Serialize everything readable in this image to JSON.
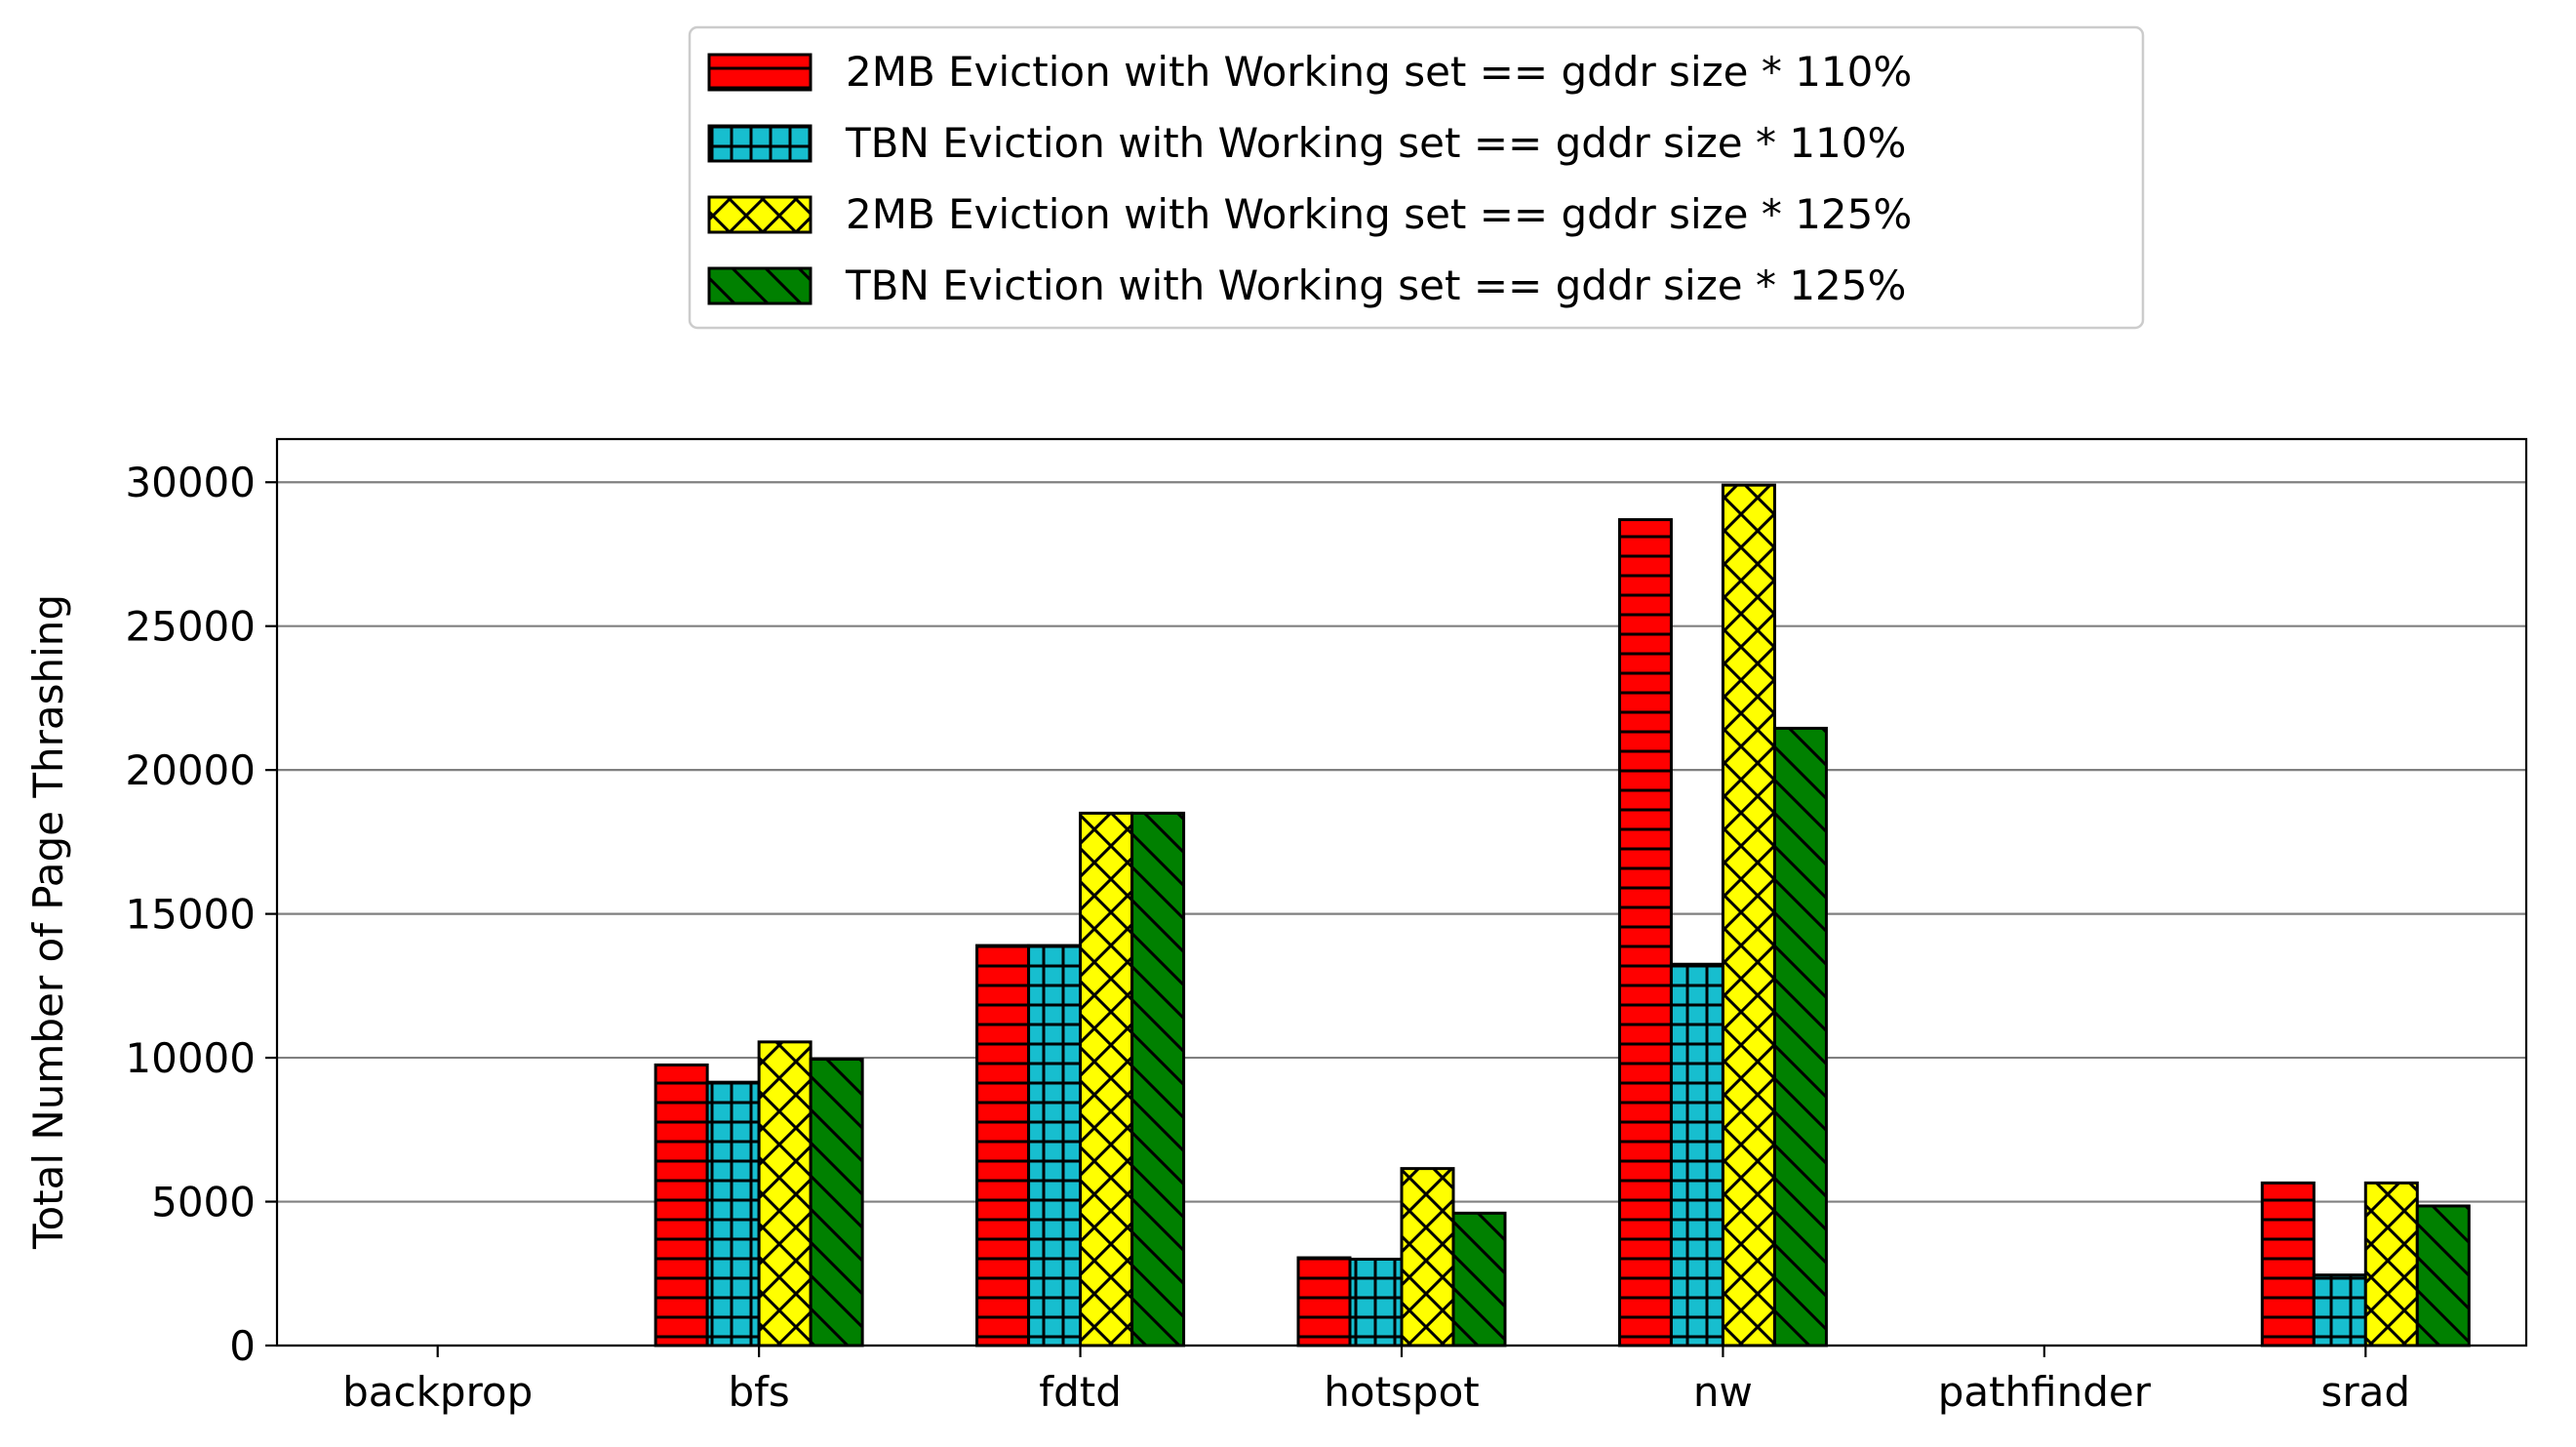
{
  "chart_data": {
    "type": "bar",
    "title": "",
    "xlabel": "",
    "ylabel": "Total Number of Page Thrashing",
    "categories": [
      "backprop",
      "bfs",
      "fdtd",
      "hotspot",
      "nw",
      "pathfinder",
      "srad"
    ],
    "ylim": [
      0,
      31500
    ],
    "yticks": [
      0,
      5000,
      10000,
      15000,
      20000,
      25000,
      30000
    ],
    "grid": "horizontal",
    "legend_position": "top-center",
    "series": [
      {
        "name": "2MB Eviction with Working set == gddr size * 110%",
        "color": "#ff0000",
        "hatch": "horizontal-lines",
        "values": [
          0,
          9750,
          13900,
          3050,
          28700,
          0,
          5650
        ]
      },
      {
        "name": "TBN Eviction with Working set == gddr size * 110%",
        "color": "#17becf",
        "hatch": "grid",
        "values": [
          0,
          9150,
          13900,
          3000,
          13250,
          0,
          2450
        ]
      },
      {
        "name": "2MB Eviction with Working set == gddr size * 125%",
        "color": "#ffff00",
        "hatch": "crosshatch",
        "values": [
          0,
          10550,
          18500,
          6150,
          29900,
          0,
          5650
        ]
      },
      {
        "name": "TBN Eviction with Working set == gddr size * 125%",
        "color": "#008000",
        "hatch": "backslash",
        "values": [
          0,
          9950,
          18500,
          4600,
          21450,
          0,
          4850
        ]
      }
    ]
  }
}
